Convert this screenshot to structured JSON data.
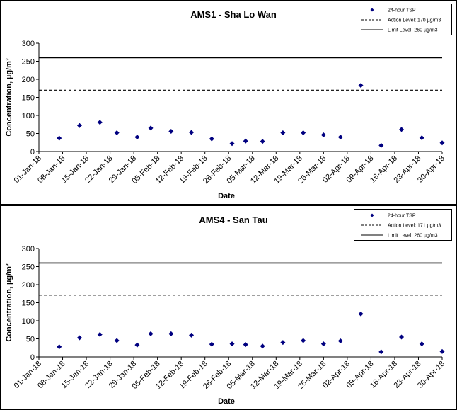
{
  "chart_data": [
    {
      "type": "scatter",
      "title": "AMS1 - Sha Lo Wan",
      "x_label": "Date",
      "y_label": "Concentration, µg/m³",
      "xlim": [
        "2018-01-01",
        "2018-04-30"
      ],
      "xticks": [
        {
          "value": "2018-01-01",
          "label": "01-Jan-18"
        },
        {
          "value": "2018-01-08",
          "label": "08-Jan-18"
        },
        {
          "value": "2018-01-15",
          "label": "15-Jan-18"
        },
        {
          "value": "2018-01-22",
          "label": "22-Jan-18"
        },
        {
          "value": "2018-01-29",
          "label": "29-Jan-18"
        },
        {
          "value": "2018-02-05",
          "label": "05-Feb-18"
        },
        {
          "value": "2018-02-12",
          "label": "12-Feb-18"
        },
        {
          "value": "2018-02-19",
          "label": "19-Feb-18"
        },
        {
          "value": "2018-02-26",
          "label": "26-Feb-18"
        },
        {
          "value": "2018-03-05",
          "label": "05-Mar-18"
        },
        {
          "value": "2018-03-12",
          "label": "12-Mar-18"
        },
        {
          "value": "2018-03-19",
          "label": "19-Mar-18"
        },
        {
          "value": "2018-03-26",
          "label": "26-Mar-18"
        },
        {
          "value": "2018-04-02",
          "label": "02-Apr-18"
        },
        {
          "value": "2018-04-09",
          "label": "09-Apr-18"
        },
        {
          "value": "2018-04-16",
          "label": "16-Apr-18"
        },
        {
          "value": "2018-04-23",
          "label": "23-Apr-18"
        },
        {
          "value": "2018-04-30",
          "label": "30-Apr-18"
        }
      ],
      "ylim": [
        0,
        300
      ],
      "yticks": [
        0,
        50,
        100,
        150,
        200,
        250,
        300
      ],
      "x": [
        "2018-01-07",
        "2018-01-13",
        "2018-01-19",
        "2018-01-24",
        "2018-01-30",
        "2018-02-03",
        "2018-02-09",
        "2018-02-15",
        "2018-02-21",
        "2018-02-27",
        "2018-03-03",
        "2018-03-08",
        "2018-03-14",
        "2018-03-20",
        "2018-03-26",
        "2018-03-31",
        "2018-04-06",
        "2018-04-12",
        "2018-04-18",
        "2018-04-24",
        "2018-04-30"
      ],
      "series": [
        {
          "name": "24-hour TSP",
          "color": "#000080",
          "values": [
            37,
            72,
            81,
            52,
            40,
            65,
            56,
            53,
            35,
            22,
            29,
            28,
            52,
            52,
            46,
            40,
            183,
            17,
            61,
            38,
            24
          ]
        }
      ],
      "reference_lines": [
        {
          "name": "Action Level: 170 µg/m3",
          "value": 170,
          "dashed": true
        },
        {
          "name": "Limit Level: 260 µg/m3",
          "value": 260,
          "dashed": false
        }
      ]
    },
    {
      "type": "scatter",
      "title": "AMS4 - San Tau",
      "x_label": "Date",
      "y_label": "Concentration, µg/m³",
      "xlim": [
        "2018-01-01",
        "2018-04-30"
      ],
      "xticks": [
        {
          "value": "2018-01-01",
          "label": "01-Jan-18"
        },
        {
          "value": "2018-01-08",
          "label": "08-Jan-18"
        },
        {
          "value": "2018-01-15",
          "label": "15-Jan-18"
        },
        {
          "value": "2018-01-22",
          "label": "22-Jan-18"
        },
        {
          "value": "2018-01-29",
          "label": "29-Jan-18"
        },
        {
          "value": "2018-02-05",
          "label": "05-Feb-18"
        },
        {
          "value": "2018-02-12",
          "label": "12-Feb-18"
        },
        {
          "value": "2018-02-19",
          "label": "19-Feb-18"
        },
        {
          "value": "2018-02-26",
          "label": "26-Feb-18"
        },
        {
          "value": "2018-03-05",
          "label": "05-Mar-18"
        },
        {
          "value": "2018-03-12",
          "label": "12-Mar-18"
        },
        {
          "value": "2018-03-19",
          "label": "19-Mar-18"
        },
        {
          "value": "2018-03-26",
          "label": "26-Mar-18"
        },
        {
          "value": "2018-04-02",
          "label": "02-Apr-18"
        },
        {
          "value": "2018-04-09",
          "label": "09-Apr-18"
        },
        {
          "value": "2018-04-16",
          "label": "16-Apr-18"
        },
        {
          "value": "2018-04-23",
          "label": "23-Apr-18"
        },
        {
          "value": "2018-04-30",
          "label": "30-Apr-18"
        }
      ],
      "ylim": [
        0,
        300
      ],
      "yticks": [
        0,
        50,
        100,
        150,
        200,
        250,
        300
      ],
      "x": [
        "2018-01-07",
        "2018-01-13",
        "2018-01-19",
        "2018-01-24",
        "2018-01-30",
        "2018-02-03",
        "2018-02-09",
        "2018-02-15",
        "2018-02-21",
        "2018-02-27",
        "2018-03-03",
        "2018-03-08",
        "2018-03-14",
        "2018-03-20",
        "2018-03-26",
        "2018-03-31",
        "2018-04-06",
        "2018-04-12",
        "2018-04-18",
        "2018-04-24",
        "2018-04-30"
      ],
      "series": [
        {
          "name": "24-hour TSP",
          "color": "#000080",
          "values": [
            28,
            53,
            62,
            45,
            33,
            64,
            64,
            60,
            35,
            36,
            34,
            30,
            40,
            45,
            36,
            44,
            119,
            14,
            55,
            36,
            15
          ]
        }
      ],
      "reference_lines": [
        {
          "name": "Action Level: 171 µg/m3",
          "value": 171,
          "dashed": true
        },
        {
          "name": "Limit Level: 260 µg/m3",
          "value": 260,
          "dashed": false
        }
      ]
    }
  ]
}
